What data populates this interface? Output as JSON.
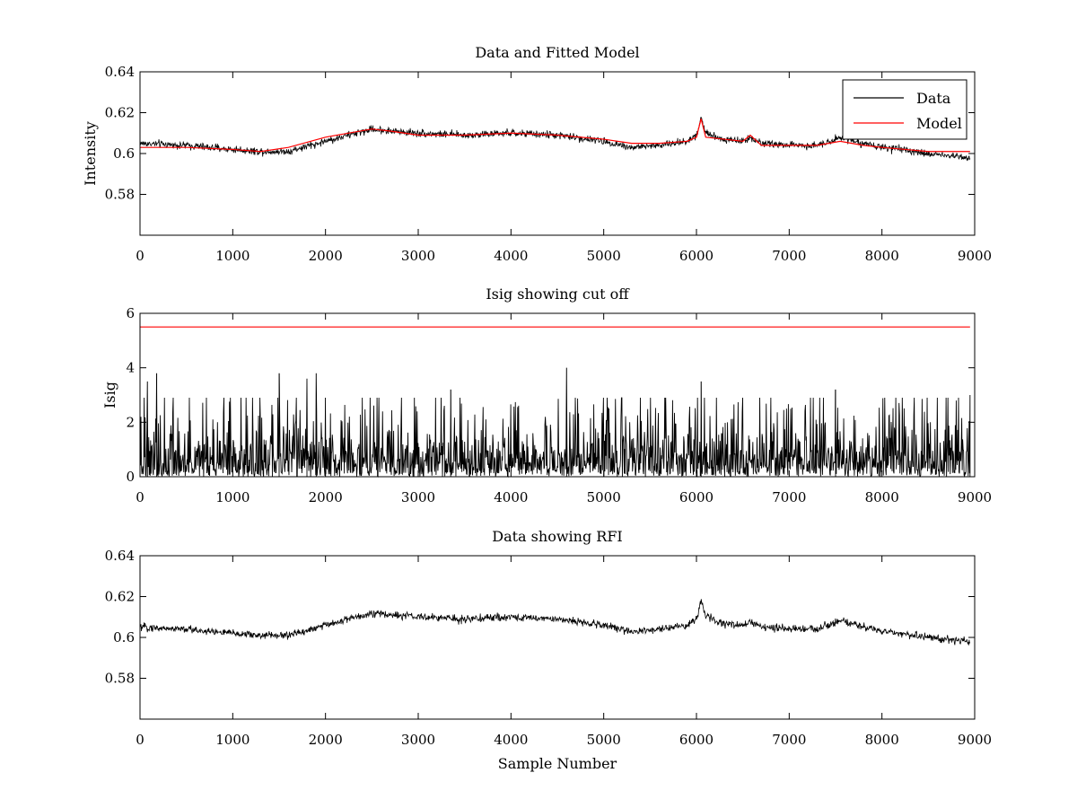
{
  "chart_data": [
    {
      "type": "line",
      "title": "Data and Fitted Model",
      "xlabel": "",
      "ylabel": "Intensity",
      "xlim": [
        0,
        9000
      ],
      "ylim": [
        0.56,
        0.64
      ],
      "xticks": [
        0,
        1000,
        2000,
        3000,
        4000,
        5000,
        6000,
        7000,
        8000,
        9000
      ],
      "yticks": [
        0.58,
        0.6,
        0.62,
        0.64
      ],
      "ytick_labels": [
        "0.58",
        "0.6",
        "0.62",
        "0.64"
      ],
      "grid": false,
      "legend": "top-right",
      "series": [
        {
          "name": "Data",
          "color": "#000000",
          "noise_amplitude": 0.004,
          "x": [
            0,
            500,
            1000,
            1300,
            1600,
            2000,
            2500,
            2700,
            3000,
            3500,
            4000,
            4500,
            5000,
            5300,
            5600,
            5900,
            6000,
            6050,
            6100,
            6300,
            6500,
            6580,
            6700,
            7000,
            7300,
            7550,
            7800,
            8000,
            8500,
            8950
          ],
          "values": [
            0.605,
            0.604,
            0.602,
            0.601,
            0.601,
            0.606,
            0.612,
            0.611,
            0.61,
            0.609,
            0.61,
            0.609,
            0.606,
            0.603,
            0.604,
            0.606,
            0.609,
            0.618,
            0.61,
            0.607,
            0.606,
            0.608,
            0.605,
            0.604,
            0.604,
            0.608,
            0.605,
            0.603,
            0.6,
            0.598
          ]
        },
        {
          "name": "Model",
          "color": "#ff0000",
          "x": [
            0,
            500,
            1000,
            1300,
            1600,
            2000,
            2500,
            2700,
            3000,
            3500,
            4000,
            4500,
            5000,
            5300,
            5600,
            5900,
            6000,
            6050,
            6100,
            6300,
            6500,
            6580,
            6700,
            7000,
            7300,
            7550,
            7800,
            8000,
            8500,
            8950
          ],
          "values": [
            0.603,
            0.603,
            0.602,
            0.601,
            0.603,
            0.608,
            0.612,
            0.611,
            0.609,
            0.609,
            0.61,
            0.609,
            0.607,
            0.605,
            0.605,
            0.606,
            0.608,
            0.617,
            0.608,
            0.607,
            0.606,
            0.609,
            0.604,
            0.604,
            0.604,
            0.606,
            0.604,
            0.603,
            0.601,
            0.601
          ]
        }
      ]
    },
    {
      "type": "line",
      "title": "Isig showing cut off",
      "xlabel": "",
      "ylabel": "Isig",
      "xlim": [
        0,
        9000
      ],
      "ylim": [
        0,
        6
      ],
      "xticks": [
        0,
        1000,
        2000,
        3000,
        4000,
        5000,
        6000,
        7000,
        8000,
        9000
      ],
      "yticks": [
        0,
        2,
        4,
        6
      ],
      "ytick_labels": [
        "0",
        "2",
        "4",
        "6"
      ],
      "grid": false,
      "cutoff": {
        "color": "#ff0000",
        "value": 5.5,
        "x": [
          0,
          8950
        ]
      },
      "series": [
        {
          "color": "#000000",
          "x": [
            0,
            8950
          ],
          "mean": 0.8,
          "peaks": [
            {
              "x": 80,
              "value": 3.5
            },
            {
              "x": 180,
              "value": 3.8
            },
            {
              "x": 1500,
              "value": 3.8
            },
            {
              "x": 1800,
              "value": 3.6
            },
            {
              "x": 1900,
              "value": 3.8
            },
            {
              "x": 3350,
              "value": 3.2
            },
            {
              "x": 4600,
              "value": 4.0
            },
            {
              "x": 6050,
              "value": 3.5
            },
            {
              "x": 7500,
              "value": 3.2
            },
            {
              "x": 8950,
              "value": 3.0
            }
          ]
        }
      ]
    },
    {
      "type": "line",
      "title": "Data showing RFI",
      "xlabel": "Sample Number",
      "ylabel": "",
      "xlim": [
        0,
        9000
      ],
      "ylim": [
        0.56,
        0.64
      ],
      "xticks": [
        0,
        1000,
        2000,
        3000,
        4000,
        5000,
        6000,
        7000,
        8000,
        9000
      ],
      "yticks": [
        0.58,
        0.6,
        0.62,
        0.64
      ],
      "ytick_labels": [
        "0.58",
        "0.6",
        "0.62",
        "0.64"
      ],
      "grid": false,
      "series": [
        {
          "color": "#000000",
          "noise_amplitude": 0.004,
          "x": [
            0,
            500,
            1000,
            1300,
            1600,
            2000,
            2500,
            2700,
            3000,
            3500,
            4000,
            4500,
            5000,
            5300,
            5600,
            5900,
            6000,
            6050,
            6100,
            6300,
            6500,
            6580,
            6700,
            7000,
            7300,
            7550,
            7800,
            8000,
            8500,
            8950
          ],
          "values": [
            0.605,
            0.604,
            0.602,
            0.601,
            0.601,
            0.606,
            0.612,
            0.611,
            0.61,
            0.609,
            0.61,
            0.609,
            0.606,
            0.603,
            0.604,
            0.606,
            0.609,
            0.618,
            0.61,
            0.607,
            0.606,
            0.608,
            0.605,
            0.604,
            0.604,
            0.608,
            0.605,
            0.603,
            0.6,
            0.598
          ]
        }
      ]
    }
  ]
}
